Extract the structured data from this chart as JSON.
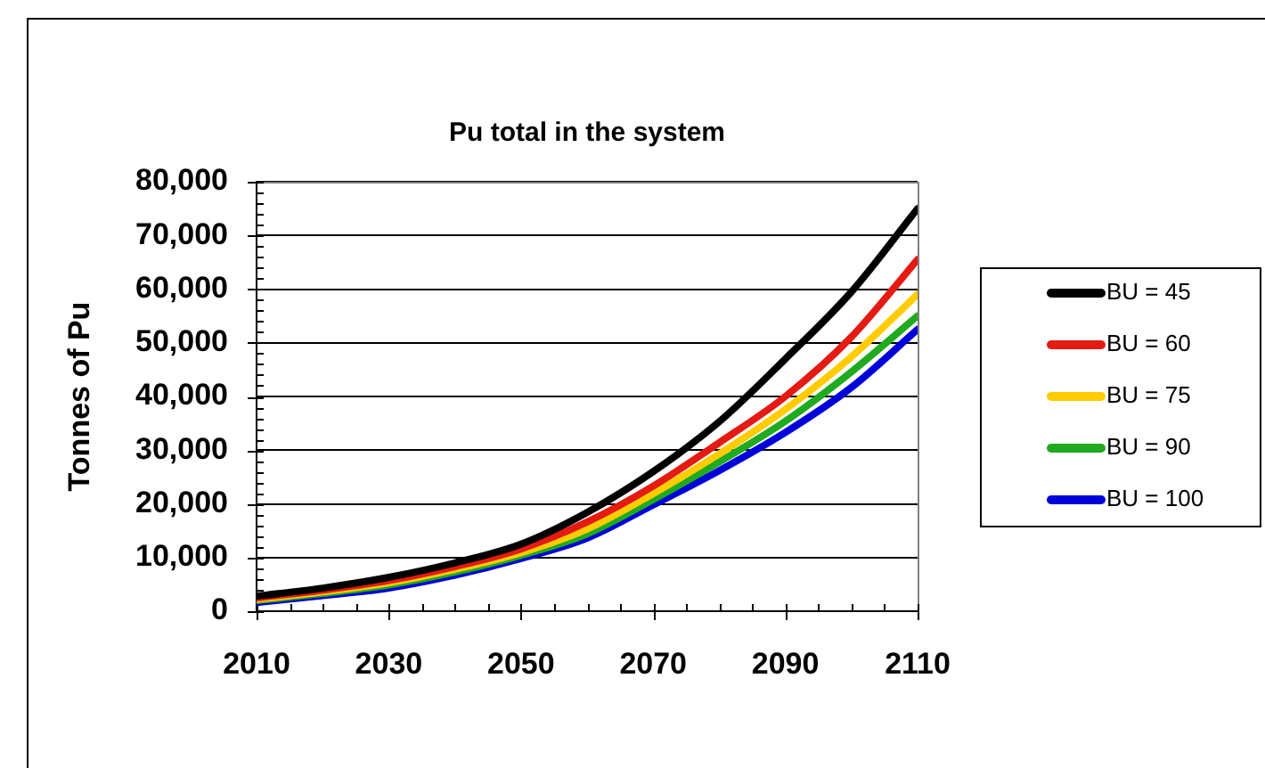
{
  "chart_data": {
    "type": "line",
    "title": "Pu total in the system",
    "ylabel": "Tonnes of Pu",
    "x": [
      2010,
      2020,
      2030,
      2040,
      2050,
      2060,
      2070,
      2080,
      2090,
      2100,
      2110
    ],
    "series": [
      {
        "name": "BU = 45",
        "color": "#000000",
        "values": [
          2800,
          4300,
          6300,
          9000,
          12500,
          18400,
          26000,
          35300,
          47000,
          59500,
          75000
        ]
      },
      {
        "name": "BU = 60",
        "color": "#e31b13",
        "values": [
          2500,
          3900,
          5700,
          8300,
          11600,
          16600,
          23300,
          31400,
          40000,
          51100,
          65500
        ]
      },
      {
        "name": "BU = 75",
        "color": "#ffcc00",
        "values": [
          2200,
          3600,
          5300,
          7800,
          10900,
          15300,
          21900,
          29300,
          37600,
          47400,
          59000
        ]
      },
      {
        "name": "BU = 90",
        "color": "#1faa1f",
        "values": [
          2000,
          3300,
          4900,
          7300,
          10400,
          14400,
          20800,
          27800,
          35400,
          44600,
          55000
        ]
      },
      {
        "name": "BU = 100",
        "color": "#0000d8",
        "values": [
          1600,
          2900,
          4300,
          6700,
          9800,
          13600,
          19800,
          26200,
          33300,
          41700,
          52500
        ]
      }
    ],
    "xlim": [
      2010,
      2110
    ],
    "xticks": [
      2010,
      {
        "value": 2015,
        "label": null
      },
      {
        "value": 2020,
        "label": null
      },
      {
        "value": 2025,
        "label": null
      },
      2030,
      {
        "value": 2035,
        "label": null
      },
      {
        "value": 2040,
        "label": null
      },
      {
        "value": 2045,
        "label": null
      },
      2050,
      {
        "value": 2055,
        "label": null
      },
      {
        "value": 2060,
        "label": null
      },
      {
        "value": 2065,
        "label": null
      },
      2070,
      {
        "value": 2075,
        "label": null
      },
      {
        "value": 2080,
        "label": null
      },
      {
        "value": 2085,
        "label": null
      },
      2090,
      {
        "value": 2095,
        "label": null
      },
      {
        "value": 2100,
        "label": null
      },
      {
        "value": 2105,
        "label": null
      },
      2110
    ],
    "ylim": [
      0,
      80000
    ],
    "yticks": [
      0,
      {
        "value": 2000,
        "label": null
      },
      {
        "value": 4000,
        "label": null
      },
      {
        "value": 6000,
        "label": null
      },
      {
        "value": 8000,
        "label": null
      },
      {
        "value": 10000,
        "label": "10,000"
      },
      {
        "value": 12000,
        "label": null
      },
      {
        "value": 14000,
        "label": null
      },
      {
        "value": 16000,
        "label": null
      },
      {
        "value": 18000,
        "label": null
      },
      {
        "value": 20000,
        "label": "20,000"
      },
      {
        "value": 22000,
        "label": null
      },
      {
        "value": 24000,
        "label": null
      },
      {
        "value": 26000,
        "label": null
      },
      {
        "value": 28000,
        "label": null
      },
      {
        "value": 30000,
        "label": "30,000"
      },
      {
        "value": 32000,
        "label": null
      },
      {
        "value": 34000,
        "label": null
      },
      {
        "value": 36000,
        "label": null
      },
      {
        "value": 38000,
        "label": null
      },
      {
        "value": 40000,
        "label": "40,000"
      },
      {
        "value": 42000,
        "label": null
      },
      {
        "value": 44000,
        "label": null
      },
      {
        "value": 46000,
        "label": null
      },
      {
        "value": 48000,
        "label": null
      },
      {
        "value": 50000,
        "label": "50,000"
      },
      {
        "value": 52000,
        "label": null
      },
      {
        "value": 54000,
        "label": null
      },
      {
        "value": 56000,
        "label": null
      },
      {
        "value": 58000,
        "label": null
      },
      {
        "value": 60000,
        "label": "60,000"
      },
      {
        "value": 62000,
        "label": null
      },
      {
        "value": 64000,
        "label": null
      },
      {
        "value": 66000,
        "label": null
      },
      {
        "value": 68000,
        "label": null
      },
      {
        "value": 70000,
        "label": "70,000"
      },
      {
        "value": 72000,
        "label": null
      },
      {
        "value": 74000,
        "label": null
      },
      {
        "value": 76000,
        "label": null
      },
      {
        "value": 78000,
        "label": null
      },
      {
        "value": 80000,
        "label": "80,000"
      }
    ],
    "grid": "y",
    "legend": "right",
    "marker": "none",
    "line_style": "solid"
  }
}
